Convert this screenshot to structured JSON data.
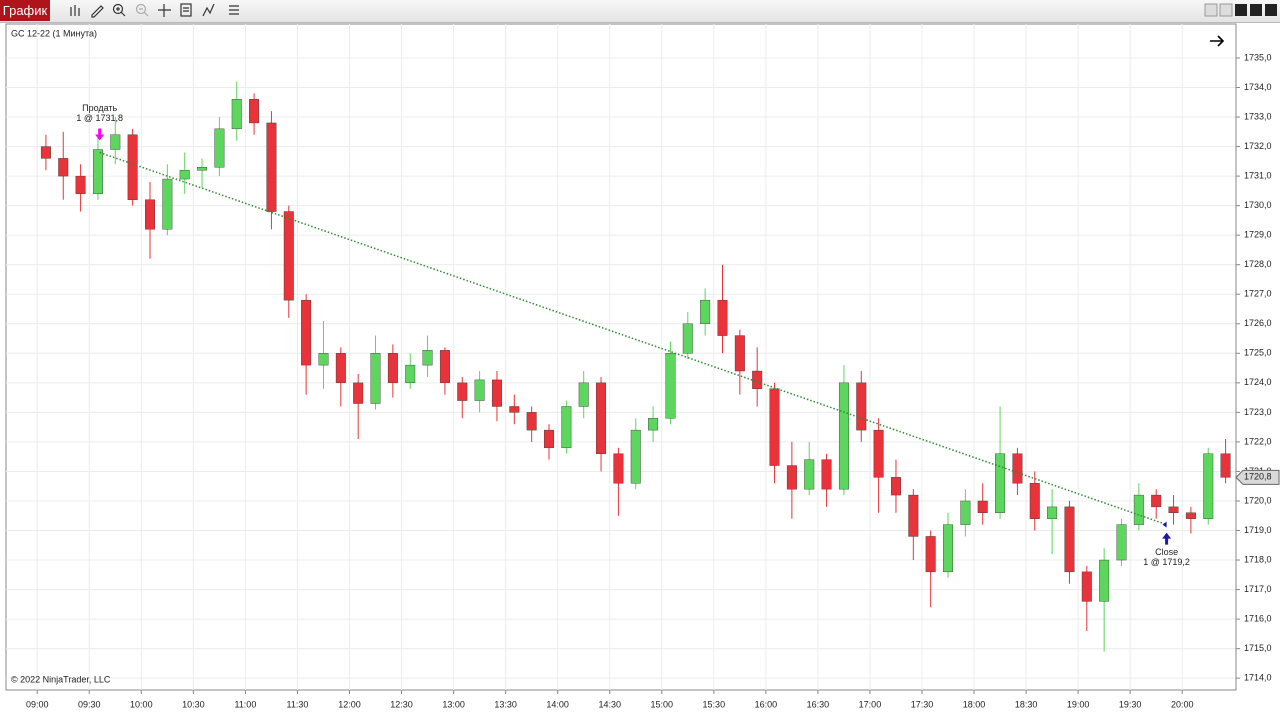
{
  "window": {
    "title": "График"
  },
  "chart_data": {
    "type": "candlestick",
    "title": "GC 12-22 (1 Минута)",
    "footnote": "© 2022 NinjaTrader, LLC",
    "colors": {
      "up": "#5cd65c",
      "down": "#e8333a",
      "grid": "#ececec",
      "trade_line": "#2e8b2e"
    },
    "grid": true,
    "x": [
      545,
      555,
      565,
      575,
      585,
      595,
      605,
      615,
      625,
      635,
      645,
      655,
      665,
      675,
      685,
      695,
      705,
      715,
      725,
      735,
      745,
      755,
      765,
      775,
      785,
      795,
      805,
      815,
      825,
      835,
      845,
      855,
      865,
      875,
      885,
      895,
      905,
      915,
      925,
      935,
      945,
      955,
      965,
      975,
      985,
      995,
      1005,
      1015,
      1025,
      1035,
      1045,
      1055,
      1065,
      1075,
      1085,
      1095,
      1105,
      1115,
      1125,
      1135,
      1145,
      1155,
      1165,
      1175,
      1185,
      1195,
      1205,
      1215,
      1225
    ],
    "open": [
      1732.0,
      1731.6,
      1731.0,
      1730.4,
      1731.9,
      1732.4,
      1730.2,
      1729.2,
      1730.9,
      1731.2,
      1731.3,
      1732.6,
      1733.6,
      1732.8,
      1729.8,
      1726.8,
      1724.6,
      1725.0,
      1724.0,
      1723.3,
      1725.0,
      1724.0,
      1724.6,
      1725.1,
      1724.0,
      1723.4,
      1724.1,
      1723.2,
      1723.0,
      1722.4,
      1721.8,
      1723.2,
      1724.0,
      1721.6,
      1720.6,
      1722.4,
      1722.8,
      1725.0,
      1726.0,
      1726.8,
      1725.6,
      1724.4,
      1723.8,
      1721.2,
      1720.4,
      1721.4,
      1720.4,
      1724.0,
      1722.4,
      1720.8,
      1720.2,
      1718.8,
      1717.6,
      1719.2,
      1720.0,
      1719.6,
      1721.6,
      1720.6,
      1719.4,
      1719.8,
      1717.6,
      1716.6,
      1718.0,
      1719.2,
      1720.2,
      1719.8,
      1719.6,
      1719.4,
      1721.6
    ],
    "high": [
      1732.4,
      1732.5,
      1731.4,
      1732.3,
      1733.0,
      1732.6,
      1730.8,
      1731.4,
      1731.8,
      1731.6,
      1733.0,
      1734.2,
      1733.8,
      1733.2,
      1730.0,
      1727.0,
      1726.1,
      1725.2,
      1724.3,
      1725.6,
      1725.3,
      1725.0,
      1725.6,
      1725.2,
      1724.2,
      1724.4,
      1724.4,
      1723.6,
      1723.2,
      1722.6,
      1723.4,
      1724.4,
      1724.2,
      1721.8,
      1722.8,
      1723.2,
      1725.4,
      1726.4,
      1727.2,
      1728.0,
      1725.8,
      1725.2,
      1724.0,
      1722.0,
      1722.0,
      1721.6,
      1724.6,
      1724.4,
      1722.8,
      1721.4,
      1720.4,
      1719.0,
      1719.6,
      1720.4,
      1720.6,
      1723.2,
      1721.8,
      1721.0,
      1720.4,
      1720.0,
      1717.8,
      1718.4,
      1719.4,
      1720.6,
      1720.4,
      1720.2,
      1719.8,
      1721.8,
      1722.1
    ],
    "low": [
      1731.2,
      1730.2,
      1729.8,
      1730.2,
      1731.4,
      1730.0,
      1728.2,
      1729.0,
      1730.4,
      1730.6,
      1731.0,
      1732.2,
      1732.4,
      1729.2,
      1726.2,
      1723.6,
      1723.8,
      1723.2,
      1722.1,
      1723.1,
      1723.5,
      1723.8,
      1724.2,
      1723.6,
      1722.8,
      1723.0,
      1722.7,
      1722.6,
      1722.0,
      1721.4,
      1721.6,
      1722.8,
      1721.0,
      1719.5,
      1720.4,
      1722.0,
      1722.6,
      1724.8,
      1725.6,
      1725.0,
      1723.6,
      1723.2,
      1720.6,
      1719.4,
      1720.2,
      1719.8,
      1720.2,
      1722.0,
      1719.6,
      1719.6,
      1718.0,
      1716.4,
      1717.4,
      1718.8,
      1719.2,
      1719.4,
      1720.2,
      1719.0,
      1718.2,
      1717.2,
      1715.6,
      1714.9,
      1717.8,
      1719.0,
      1719.4,
      1719.2,
      1718.9,
      1719.2,
      1720.6
    ],
    "close": [
      1731.6,
      1731.0,
      1730.4,
      1731.9,
      1732.4,
      1730.2,
      1729.2,
      1730.9,
      1731.2,
      1731.3,
      1732.6,
      1733.6,
      1732.8,
      1729.8,
      1726.8,
      1724.6,
      1725.0,
      1724.0,
      1723.3,
      1725.0,
      1724.0,
      1724.6,
      1725.1,
      1724.0,
      1723.4,
      1724.1,
      1723.2,
      1723.0,
      1722.4,
      1721.8,
      1723.2,
      1724.0,
      1721.6,
      1720.6,
      1722.4,
      1722.8,
      1725.0,
      1726.0,
      1726.8,
      1725.6,
      1724.4,
      1723.8,
      1721.2,
      1720.4,
      1721.4,
      1720.4,
      1724.0,
      1722.4,
      1720.8,
      1720.2,
      1718.8,
      1717.6,
      1719.2,
      1720.0,
      1719.6,
      1721.6,
      1720.6,
      1719.4,
      1719.8,
      1717.6,
      1716.6,
      1718.0,
      1719.2,
      1720.2,
      1719.8,
      1719.6,
      1719.4,
      1721.6,
      1720.8
    ],
    "xlim": [
      522,
      1231
    ],
    "xticks": [
      {
        "value": 540,
        "label": "09:00"
      },
      {
        "value": 570,
        "label": "09:30"
      },
      {
        "value": 600,
        "label": "10:00"
      },
      {
        "value": 630,
        "label": "10:30"
      },
      {
        "value": 660,
        "label": "11:00"
      },
      {
        "value": 690,
        "label": "11:30"
      },
      {
        "value": 720,
        "label": "12:00"
      },
      {
        "value": 750,
        "label": "12:30"
      },
      {
        "value": 780,
        "label": "13:00"
      },
      {
        "value": 810,
        "label": "13:30"
      },
      {
        "value": 840,
        "label": "14:00"
      },
      {
        "value": 870,
        "label": "14:30"
      },
      {
        "value": 900,
        "label": "15:00"
      },
      {
        "value": 930,
        "label": "15:30"
      },
      {
        "value": 960,
        "label": "16:00"
      },
      {
        "value": 990,
        "label": "16:30"
      },
      {
        "value": 1020,
        "label": "17:00"
      },
      {
        "value": 1050,
        "label": "17:30"
      },
      {
        "value": 1080,
        "label": "18:00"
      },
      {
        "value": 1110,
        "label": "18:30"
      },
      {
        "value": 1140,
        "label": "19:00"
      },
      {
        "value": 1170,
        "label": "19:30"
      },
      {
        "value": 1200,
        "label": "20:00"
      }
    ],
    "ylim": [
      1713.6,
      1736.15
    ],
    "yticks": [
      {
        "value": 1714,
        "label": "1714,0"
      },
      {
        "value": 1715,
        "label": "1715,0"
      },
      {
        "value": 1716,
        "label": "1716,0"
      },
      {
        "value": 1717,
        "label": "1717,0"
      },
      {
        "value": 1718,
        "label": "1718,0"
      },
      {
        "value": 1719,
        "label": "1719,0"
      },
      {
        "value": 1720,
        "label": "1720,0"
      },
      {
        "value": 1721,
        "label": "1721,0"
      },
      {
        "value": 1722,
        "label": "1722,0"
      },
      {
        "value": 1723,
        "label": "1723,0"
      },
      {
        "value": 1724,
        "label": "1724,0"
      },
      {
        "value": 1725,
        "label": "1725,0"
      },
      {
        "value": 1726,
        "label": "1726,0"
      },
      {
        "value": 1727,
        "label": "1727,0"
      },
      {
        "value": 1728,
        "label": "1728,0"
      },
      {
        "value": 1729,
        "label": "1729,0"
      },
      {
        "value": 1730,
        "label": "1730,0"
      },
      {
        "value": 1731,
        "label": "1731,0"
      },
      {
        "value": 1732,
        "label": "1732,0"
      },
      {
        "value": 1733,
        "label": "1733,0"
      },
      {
        "value": 1734,
        "label": "1734,0"
      },
      {
        "value": 1735,
        "label": "1735,0"
      }
    ],
    "last_price": {
      "value": 1720.8,
      "label": "1720,8"
    },
    "trades": [
      {
        "label": "Продать",
        "detail": "1 @ 1731,8",
        "x": 576,
        "price": 1731.8,
        "side": "sell",
        "color": "#ff00ff"
      },
      {
        "label": "Close",
        "detail": "1 @ 1719,2",
        "x": 1191,
        "price": 1719.2,
        "side": "buy",
        "color": "#1a1aa6"
      }
    ]
  }
}
